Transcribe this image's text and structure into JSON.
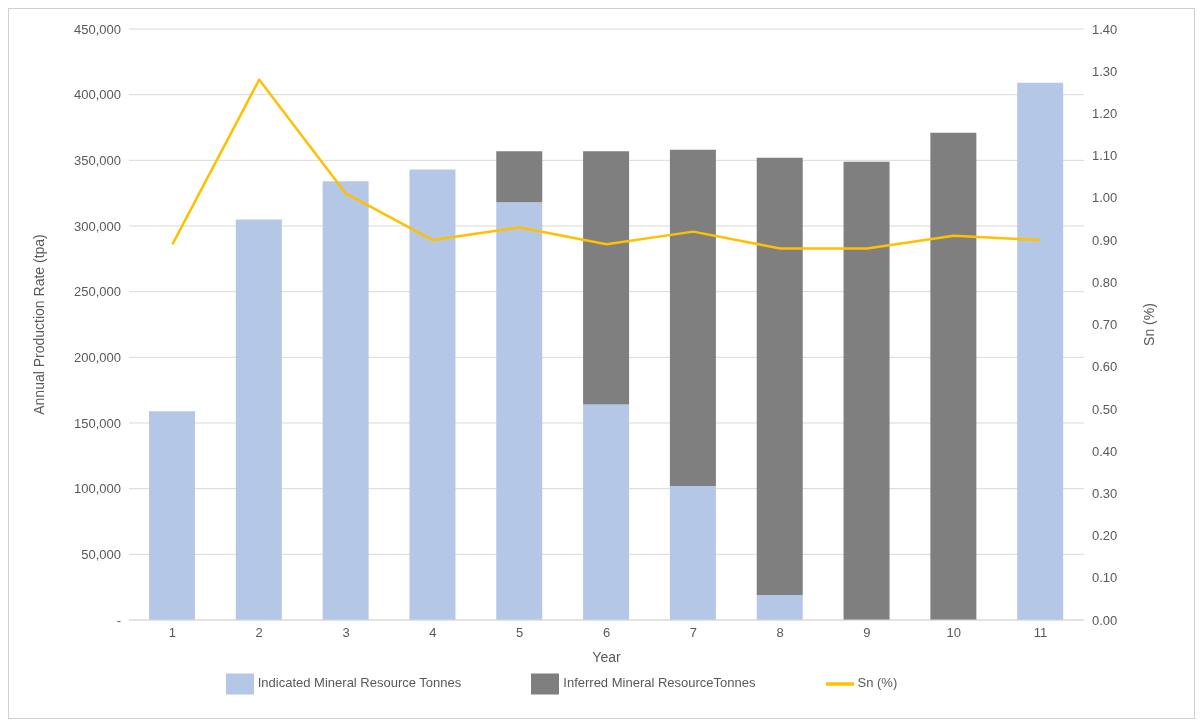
{
  "chart_data": {
    "type": "bar",
    "stacked": true,
    "xlabel": "Year",
    "ylabel": "Annual Production Rate (tpa)",
    "y2label": "Sn (%)",
    "categories": [
      "1",
      "2",
      "3",
      "4",
      "5",
      "6",
      "7",
      "8",
      "9",
      "10",
      "11"
    ],
    "series": [
      {
        "name": "Indicated Mineral Resource Tonnes",
        "color": "#b4c7e7",
        "values": [
          159000,
          305000,
          334000,
          343000,
          318000,
          164000,
          102000,
          19000,
          null,
          null,
          409000
        ]
      },
      {
        "name": "Inferred Mineral ResourceTonnes",
        "color": "#7f7f7f",
        "values": [
          null,
          null,
          null,
          null,
          39000,
          193000,
          256000,
          333000,
          349000,
          371000,
          null
        ]
      },
      {
        "name": "Sn (%)",
        "type": "line",
        "axis": "y2",
        "color": "#ffc000",
        "values": [
          0.89,
          1.28,
          1.01,
          0.9,
          0.93,
          0.89,
          0.92,
          0.88,
          0.88,
          0.91,
          0.9
        ]
      }
    ],
    "ylim": [
      0,
      450000
    ],
    "yticks": [
      {
        "value": 0,
        "label": "-"
      },
      {
        "value": 50000,
        "label": "50,000"
      },
      {
        "value": 100000,
        "label": "100,000"
      },
      {
        "value": 150000,
        "label": "150,000"
      },
      {
        "value": 200000,
        "label": "200,000"
      },
      {
        "value": 250000,
        "label": "250,000"
      },
      {
        "value": 300000,
        "label": "300,000"
      },
      {
        "value": 350000,
        "label": "350,000"
      },
      {
        "value": 400000,
        "label": "400,000"
      },
      {
        "value": 450000,
        "label": "450,000"
      }
    ],
    "y2lim": [
      0,
      1.4
    ],
    "y2ticks": [
      {
        "value": 0,
        "label": "0.00"
      },
      {
        "value": 0.1,
        "label": "0.10"
      },
      {
        "value": 0.2,
        "label": "0.20"
      },
      {
        "value": 0.3,
        "label": "0.30"
      },
      {
        "value": 0.4,
        "label": "0.40"
      },
      {
        "value": 0.5,
        "label": "0.50"
      },
      {
        "value": 0.6,
        "label": "0.60"
      },
      {
        "value": 0.7,
        "label": "0.70"
      },
      {
        "value": 0.8,
        "label": "0.80"
      },
      {
        "value": 0.9,
        "label": "0.90"
      },
      {
        "value": 1.0,
        "label": "1.00"
      },
      {
        "value": 1.1,
        "label": "1.10"
      },
      {
        "value": 1.2,
        "label": "1.20"
      },
      {
        "value": 1.3,
        "label": "1.30"
      },
      {
        "value": 1.4,
        "label": "1.40"
      }
    ],
    "grid": "y",
    "legend": "bottom",
    "marker": "none",
    "line_style": "solid"
  }
}
